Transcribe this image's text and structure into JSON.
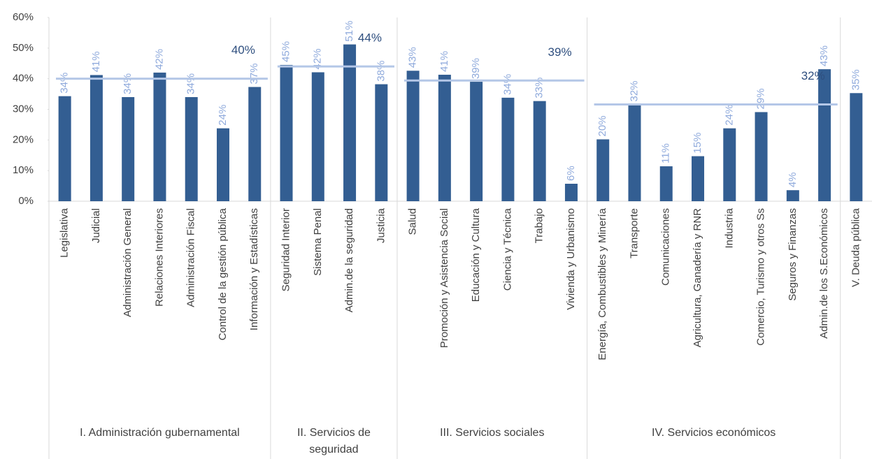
{
  "chart_data": {
    "type": "bar",
    "bar_color": "#335e92",
    "average_color": "#b4c7e7",
    "value_label_color": "#8faadc",
    "average_label_color": "#2f4f7f",
    "ylim": [
      0,
      60
    ],
    "yticks": [
      {
        "value": 0,
        "label": "0%"
      },
      {
        "value": 10,
        "label": "10%"
      },
      {
        "value": 20,
        "label": "20%"
      },
      {
        "value": 30,
        "label": "30%"
      },
      {
        "value": 40,
        "label": "40%"
      },
      {
        "value": 50,
        "label": "50%"
      },
      {
        "value": 60,
        "label": "60%"
      }
    ],
    "groups": [
      {
        "name": "I. Administración gubernamental",
        "average": 40,
        "average_label": "40%",
        "categories": [
          "Legislativa",
          "Judicial",
          "Administración General",
          "Relaciones Interiores",
          "Administración Fiscal",
          "Control de la gestión pública",
          "Información y Estadísticas"
        ],
        "values": [
          34.3,
          41.2,
          34.0,
          42.0,
          34.0,
          23.8,
          37.3
        ],
        "value_labels": [
          "34%",
          "41%",
          "34%",
          "42%",
          "34%",
          "24%",
          "37%"
        ]
      },
      {
        "name": "II. Servicios de seguridad",
        "average": 44,
        "average_label": "44%",
        "categories": [
          "Seguridad Interior",
          "Sistema Penal",
          "Admin.de la seguridad",
          "Justicia"
        ],
        "values": [
          44.5,
          42.1,
          51.2,
          38.2
        ],
        "value_labels": [
          "45%",
          "42%",
          "51%",
          "38%"
        ]
      },
      {
        "name": "III. Servicios sociales",
        "average": 39.4,
        "average_label": "39%",
        "categories": [
          "Salud",
          "Promoción y Asistencia Social",
          "Educación y Cultura",
          "Ciencia y Técnica",
          "Trabajo",
          "Vivienda y  Urbanismo"
        ],
        "values": [
          42.6,
          41.3,
          39.0,
          33.8,
          32.7,
          5.7
        ],
        "value_labels": [
          "43%",
          "41%",
          "39%",
          "34%",
          "33%",
          "6%"
        ]
      },
      {
        "name": "IV. Servicios económicos",
        "average": 31.6,
        "average_label": "32%",
        "categories": [
          "Energía, Combustibles y Minería",
          "Transporte",
          "Comunicaciones",
          "Agricultura, Ganadería y RNR",
          "Industria",
          "Comercio, Turismo y otros Ss",
          "Seguros y Finanzas",
          "Admin.de los S.Económicos"
        ],
        "values": [
          20.2,
          31.6,
          11.4,
          14.7,
          23.8,
          29.1,
          3.6,
          43.1
        ],
        "value_labels": [
          "20%",
          "32%",
          "11%",
          "15%",
          "24%",
          "29%",
          "4%",
          "43%"
        ]
      },
      {
        "categories": [
          "V. Deuda pública"
        ],
        "values": [
          35.3
        ],
        "value_labels": [
          "35%"
        ]
      }
    ]
  }
}
